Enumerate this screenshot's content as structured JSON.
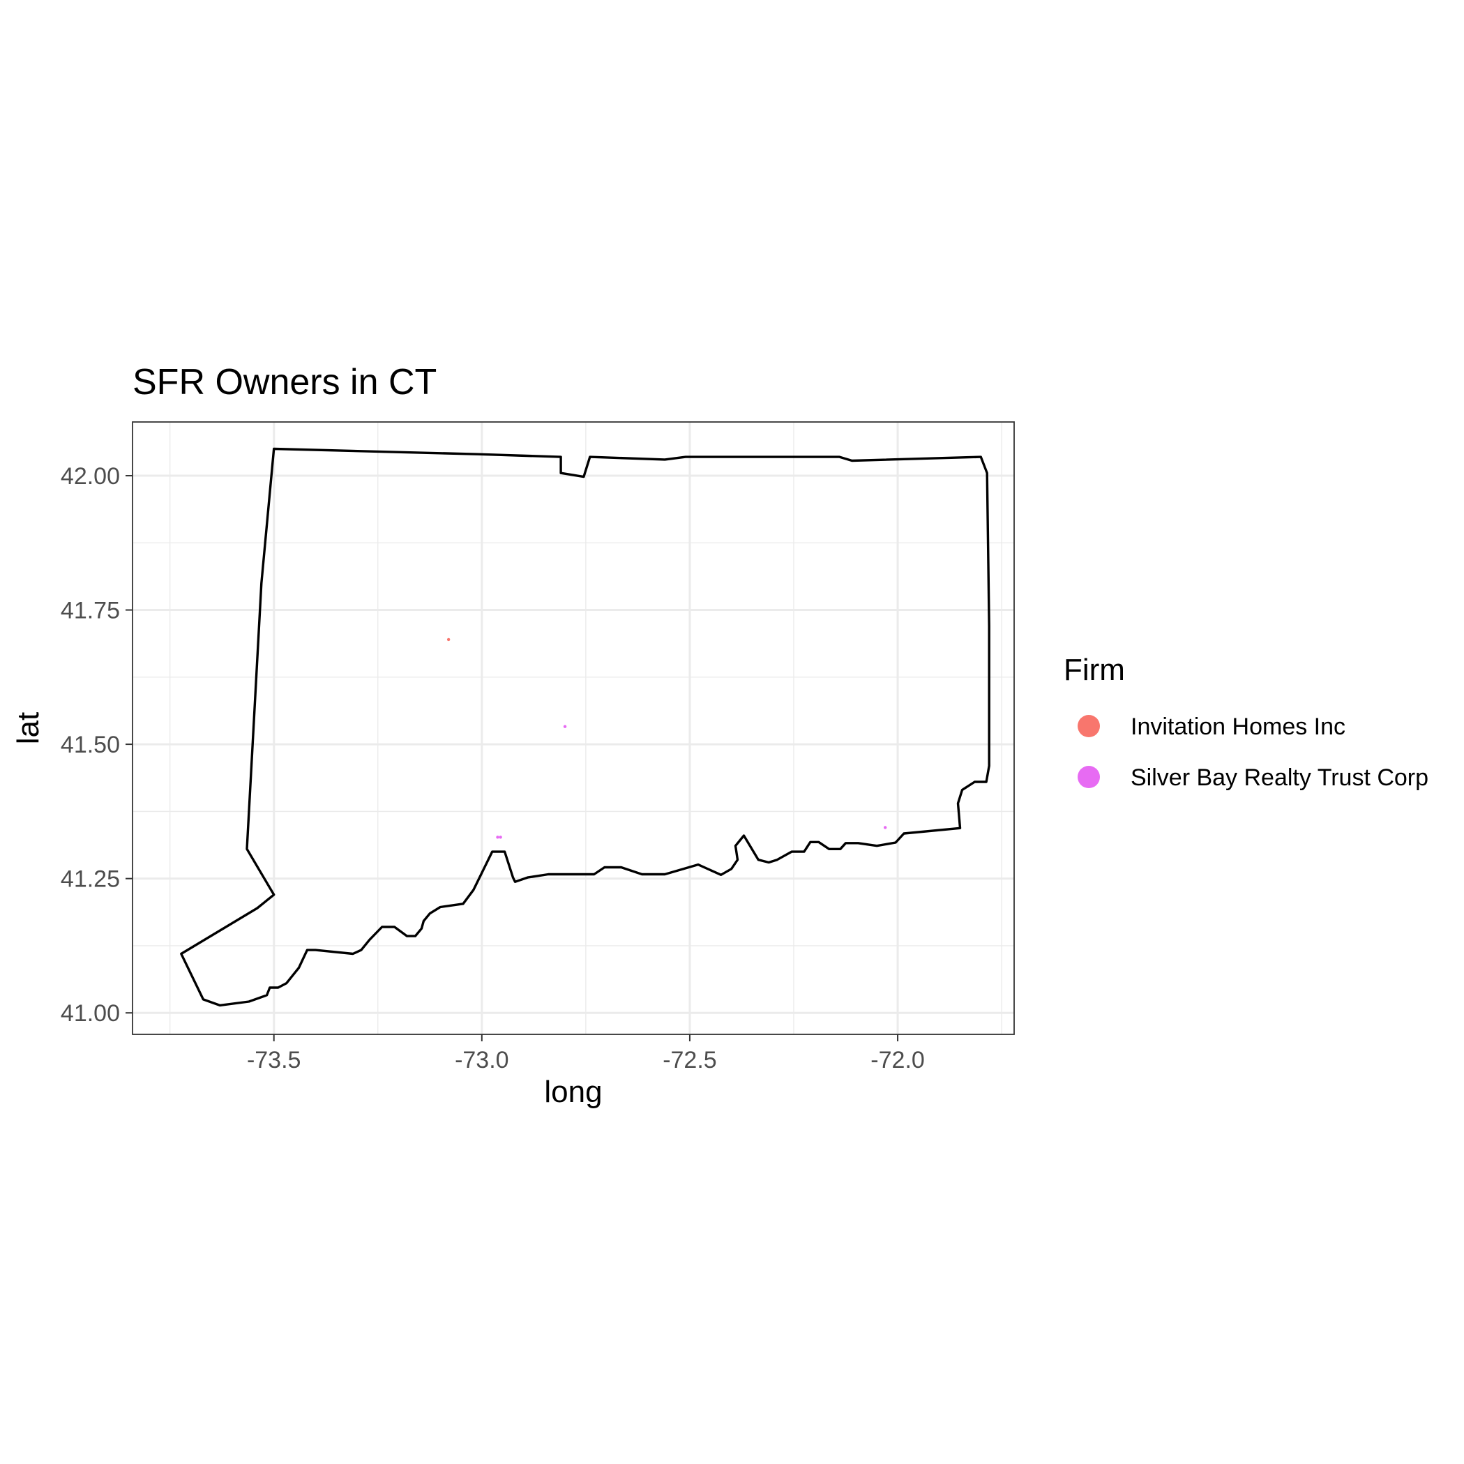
{
  "chart_data": {
    "type": "scatter",
    "title": "SFR Owners in CT",
    "xlabel": "long",
    "ylabel": "lat",
    "xlim": [
      -73.84,
      -71.72
    ],
    "ylim": [
      40.96,
      42.1
    ],
    "x_ticks": [
      -73.5,
      -73.0,
      -72.5,
      -72.0
    ],
    "x_tick_labels": [
      "-73.5",
      "-73.0",
      "-72.5",
      "-72.0"
    ],
    "y_ticks": [
      41.0,
      41.25,
      41.5,
      41.75,
      42.0
    ],
    "y_tick_labels": [
      "41.00",
      "41.25",
      "41.50",
      "41.75",
      "42.00"
    ],
    "grid": true,
    "legend": {
      "title": "Firm",
      "placement": "right",
      "entries": [
        {
          "label": "Invitation Homes Inc",
          "color": "#F8766D"
        },
        {
          "label": "Silver Bay Realty Trust Corp",
          "color": "#E76BF3"
        }
      ]
    },
    "outline": {
      "name": "Connecticut",
      "stroke": "#000000",
      "points": [
        [
          -73.5,
          42.05
        ],
        [
          -73.01,
          42.04
        ],
        [
          -72.81,
          42.035
        ],
        [
          -72.81,
          42.005
        ],
        [
          -72.755,
          41.998
        ],
        [
          -72.74,
          42.035
        ],
        [
          -72.56,
          42.03
        ],
        [
          -72.51,
          42.035
        ],
        [
          -72.14,
          42.035
        ],
        [
          -72.11,
          42.028
        ],
        [
          -71.8,
          42.035
        ],
        [
          -71.785,
          42.005
        ],
        [
          -71.78,
          41.72
        ],
        [
          -71.78,
          41.46
        ],
        [
          -71.787,
          41.43
        ],
        [
          -71.815,
          41.43
        ],
        [
          -71.845,
          41.415
        ],
        [
          -71.855,
          41.39
        ],
        [
          -71.85,
          41.344
        ],
        [
          -71.985,
          41.334
        ],
        [
          -72.005,
          41.317
        ],
        [
          -72.05,
          41.311
        ],
        [
          -72.095,
          41.316
        ],
        [
          -72.125,
          41.316
        ],
        [
          -72.138,
          41.305
        ],
        [
          -72.165,
          41.305
        ],
        [
          -72.19,
          41.318
        ],
        [
          -72.21,
          41.318
        ],
        [
          -72.225,
          41.3
        ],
        [
          -72.255,
          41.3
        ],
        [
          -72.29,
          41.285
        ],
        [
          -72.31,
          41.28
        ],
        [
          -72.335,
          41.285
        ],
        [
          -72.37,
          41.33
        ],
        [
          -72.39,
          41.311
        ],
        [
          -72.385,
          41.285
        ],
        [
          -72.4,
          41.268
        ],
        [
          -72.425,
          41.257
        ],
        [
          -72.48,
          41.276
        ],
        [
          -72.56,
          41.258
        ],
        [
          -72.615,
          41.258
        ],
        [
          -72.665,
          41.271
        ],
        [
          -72.705,
          41.271
        ],
        [
          -72.73,
          41.258
        ],
        [
          -72.84,
          41.258
        ],
        [
          -72.89,
          41.252
        ],
        [
          -72.92,
          41.244
        ],
        [
          -72.925,
          41.252
        ],
        [
          -72.945,
          41.3
        ],
        [
          -72.975,
          41.3
        ],
        [
          -73.02,
          41.229
        ],
        [
          -73.045,
          41.203
        ],
        [
          -73.1,
          41.197
        ],
        [
          -73.125,
          41.185
        ],
        [
          -73.14,
          41.171
        ],
        [
          -73.145,
          41.157
        ],
        [
          -73.16,
          41.143
        ],
        [
          -73.18,
          41.143
        ],
        [
          -73.21,
          41.16
        ],
        [
          -73.24,
          41.16
        ],
        [
          -73.27,
          41.136
        ],
        [
          -73.29,
          41.117
        ],
        [
          -73.31,
          41.11
        ],
        [
          -73.4,
          41.117
        ],
        [
          -73.42,
          41.117
        ],
        [
          -73.44,
          41.084
        ],
        [
          -73.47,
          41.055
        ],
        [
          -73.49,
          41.047
        ],
        [
          -73.51,
          41.047
        ],
        [
          -73.517,
          41.033
        ],
        [
          -73.56,
          41.021
        ],
        [
          -73.63,
          41.014
        ],
        [
          -73.67,
          41.025
        ],
        [
          -73.723,
          41.11
        ],
        [
          -73.54,
          41.195
        ],
        [
          -73.5,
          41.22
        ],
        [
          -73.565,
          41.305
        ],
        [
          -73.53,
          41.8
        ],
        [
          -73.5,
          42.05
        ]
      ]
    },
    "series": [
      {
        "name": "Invitation Homes Inc",
        "color": "#F8766D",
        "points": [
          [
            -73.08,
            41.695
          ]
        ]
      },
      {
        "name": "Silver Bay Realty Trust Corp",
        "color": "#E76BF3",
        "points": [
          [
            -72.8,
            41.533
          ],
          [
            -72.962,
            41.327
          ],
          [
            -72.955,
            41.327
          ],
          [
            -72.03,
            41.345
          ]
        ]
      }
    ]
  }
}
